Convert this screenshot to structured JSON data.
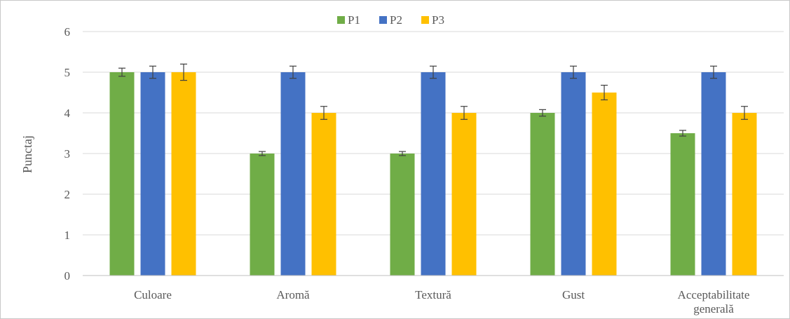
{
  "chart_data": {
    "type": "bar",
    "title": "",
    "xlabel": "",
    "ylabel": "Punctaj",
    "ylim": [
      0,
      6
    ],
    "yticks": [
      0,
      1,
      2,
      3,
      4,
      5,
      6
    ],
    "grid": true,
    "legend_position": "top-center",
    "categories": [
      "Culoare",
      "Aromă",
      "Textură",
      "Gust",
      "Acceptabilitate generală"
    ],
    "category_lines": [
      [
        "Culoare"
      ],
      [
        "Aromă"
      ],
      [
        "Textură"
      ],
      [
        "Gust"
      ],
      [
        "Acceptabilitate",
        "generală"
      ]
    ],
    "series": [
      {
        "name": "P1",
        "color": "#70ad47",
        "values": [
          5,
          3,
          3,
          4,
          3.5
        ],
        "errors": [
          0.1,
          0.05,
          0.05,
          0.08,
          0.07
        ]
      },
      {
        "name": "P2",
        "color": "#4472c4",
        "values": [
          5,
          5,
          5,
          5,
          5
        ],
        "errors": [
          0.15,
          0.15,
          0.15,
          0.15,
          0.15
        ]
      },
      {
        "name": "P3",
        "color": "#ffc000",
        "values": [
          5,
          4,
          4,
          4.5,
          4
        ],
        "errors": [
          0.2,
          0.16,
          0.16,
          0.18,
          0.16
        ]
      }
    ]
  }
}
